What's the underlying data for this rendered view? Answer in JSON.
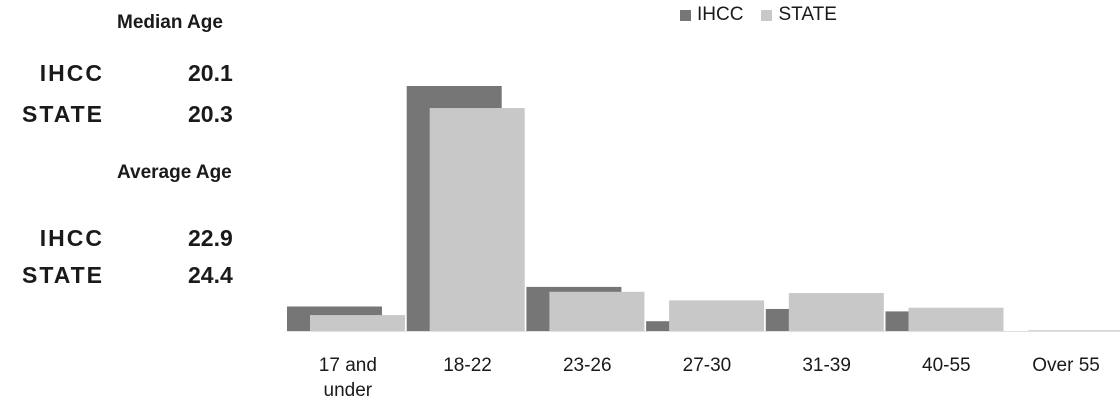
{
  "stats": {
    "median": {
      "heading": "Median Age",
      "rows": [
        {
          "name": "IHCC",
          "value": "20.1"
        },
        {
          "name": "STATE",
          "value": "20.3"
        }
      ]
    },
    "average": {
      "heading": "Average Age",
      "rows": [
        {
          "name": "IHCC",
          "value": "22.9"
        },
        {
          "name": "STATE",
          "value": "24.4"
        }
      ]
    }
  },
  "chart_data": {
    "type": "bar",
    "categories": [
      "17 and\nunder",
      "18-22",
      "23-26",
      "27-30",
      "31-39",
      "40-55",
      "Over 55"
    ],
    "series": [
      {
        "name": "IHCC",
        "color": "#767676",
        "values": [
          10,
          100,
          18,
          4,
          9,
          8,
          0
        ]
      },
      {
        "name": "STATE",
        "color": "#c8c8c8",
        "values": [
          6.5,
          91,
          16,
          12.5,
          15.5,
          9.5,
          0.3
        ]
      }
    ],
    "ylim": [
      0,
      100
    ],
    "grid": false,
    "legend": "top"
  }
}
